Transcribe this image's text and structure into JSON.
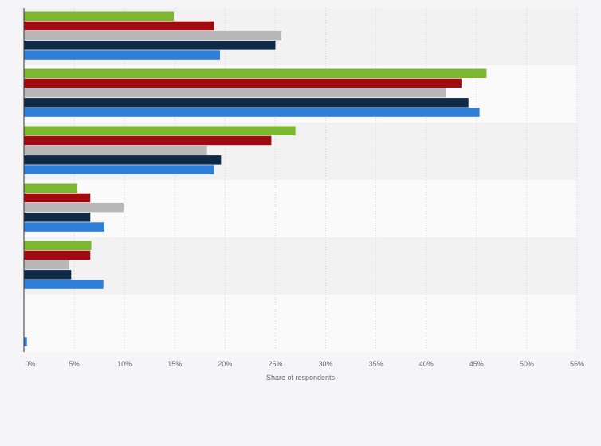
{
  "chart_data": {
    "type": "bar",
    "orientation": "horizontal",
    "title": "",
    "xlabel": "Share of respondents",
    "ylabel": "",
    "xlim": [
      0,
      55
    ],
    "x_ticks": [
      "0%",
      "5%",
      "10%",
      "15%",
      "20%",
      "25%",
      "30%",
      "35%",
      "40%",
      "45%",
      "50%",
      "55%"
    ],
    "categories": [
      "",
      "",
      "",
      "",
      "",
      ""
    ],
    "grid": true,
    "legend": "none",
    "series": [
      {
        "color": "#7cb82f",
        "values": [
          14.9,
          46.0,
          27.0,
          5.3,
          6.7,
          0
        ]
      },
      {
        "color": "#a10a0e",
        "values": [
          18.9,
          43.5,
          24.6,
          6.6,
          6.6,
          0
        ]
      },
      {
        "color": "#b8b8b8",
        "values": [
          25.6,
          42.0,
          18.2,
          9.9,
          4.5,
          0
        ]
      },
      {
        "color": "#0f2a47",
        "values": [
          25.0,
          44.2,
          19.6,
          6.6,
          4.7,
          0
        ]
      },
      {
        "color": "#2f7ed8",
        "values": [
          19.5,
          45.3,
          18.9,
          8.0,
          7.9,
          0.3
        ]
      }
    ]
  }
}
